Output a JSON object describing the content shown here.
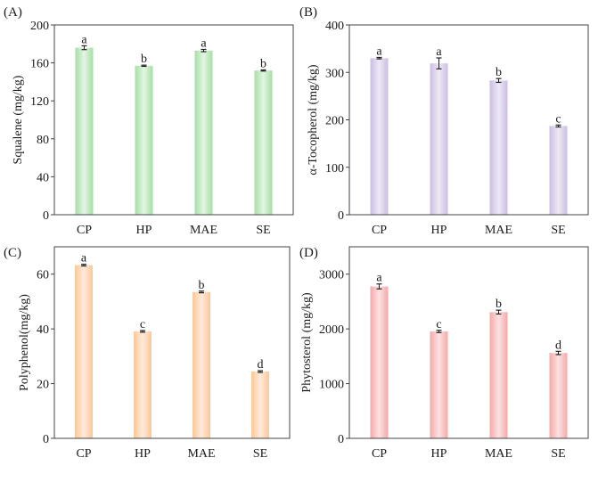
{
  "chart_data": [
    {
      "panel": "(A)",
      "type": "bar",
      "categories": [
        "CP",
        "HP",
        "MAE",
        "SE"
      ],
      "values": [
        176,
        157,
        173,
        152
      ],
      "errors": [
        2,
        0.6,
        1.2,
        0.6
      ],
      "letters": [
        "a",
        "b",
        "a",
        "b"
      ],
      "xlabel": "",
      "ylabel": "Squalene (mg/kg)",
      "ylim": [
        0,
        200
      ],
      "yticks": [
        0,
        40,
        80,
        120,
        160,
        200
      ],
      "color_edge": "#a6dea6",
      "color_center": "#e2f6e2",
      "grid": false
    },
    {
      "panel": "(B)",
      "type": "bar",
      "categories": [
        "CP",
        "HP",
        "MAE",
        "SE"
      ],
      "values": [
        330,
        319,
        283,
        187
      ],
      "errors": [
        1.5,
        11.5,
        4,
        2
      ],
      "letters": [
        "a",
        "a",
        "b",
        "c"
      ],
      "xlabel": "",
      "ylabel": "α-Tocopherol (mg/kg)",
      "ylim": [
        0,
        400
      ],
      "yticks": [
        0,
        100,
        200,
        300,
        400
      ],
      "color_edge": "#cbbde3",
      "color_center": "#eee9f6",
      "grid": false
    },
    {
      "panel": "(C)",
      "type": "bar",
      "categories": [
        "CP",
        "HP",
        "MAE",
        "SE"
      ],
      "values": [
        63.3,
        39.1,
        53.5,
        24.4
      ],
      "errors": [
        0.3,
        0.3,
        0.3,
        0.3
      ],
      "letters": [
        "a",
        "c",
        "b",
        "d"
      ],
      "xlabel": "",
      "ylabel": "Polyphenol(mg/kg)",
      "ylim": [
        0,
        70
      ],
      "yticks": [
        0,
        20,
        40,
        60
      ],
      "color_edge": "#fcc897",
      "color_center": "#feeadb",
      "grid": false
    },
    {
      "panel": "(D)",
      "type": "bar",
      "categories": [
        "CP",
        "HP",
        "MAE",
        "SE"
      ],
      "values": [
        2776,
        1953,
        2307,
        1560
      ],
      "errors": [
        45,
        20,
        35,
        30
      ],
      "letters": [
        "a",
        "c",
        "b",
        "d"
      ],
      "xlabel": "",
      "ylabel": "Phytosterol (mg/kg)",
      "ylim": [
        0,
        3500
      ],
      "yticks": [
        0,
        1000,
        2000,
        3000
      ],
      "color_edge": "#f4a9a9",
      "color_center": "#fde2e2",
      "grid": false
    }
  ]
}
